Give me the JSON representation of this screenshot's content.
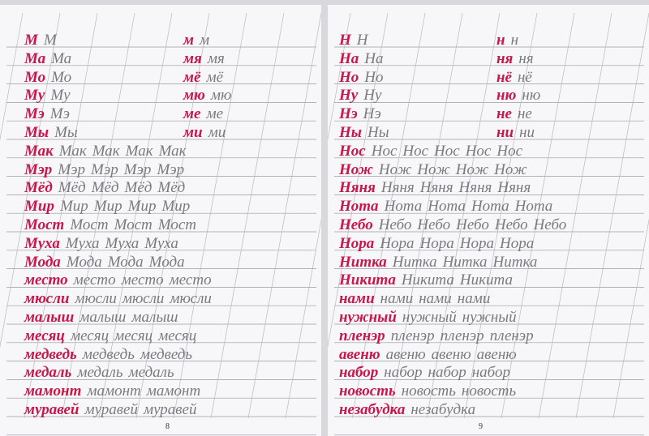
{
  "pages": [
    {
      "page_number": "8",
      "rows": [
        {
          "sample": "М",
          "copies": [
            "М"
          ],
          "sample_lower": "м",
          "copies_lower": [
            "м"
          ]
        },
        {
          "sample": "Ма",
          "copies": [
            "Ма"
          ],
          "sample_lower": "мя",
          "copies_lower": [
            "мя"
          ]
        },
        {
          "sample": "Мо",
          "copies": [
            "Мо"
          ],
          "sample_lower": "мё",
          "copies_lower": [
            "мё"
          ]
        },
        {
          "sample": "Му",
          "copies": [
            "Му"
          ],
          "sample_lower": "мю",
          "copies_lower": [
            "мю"
          ]
        },
        {
          "sample": "Мэ",
          "copies": [
            "Мэ"
          ],
          "sample_lower": "ме",
          "copies_lower": [
            "ме"
          ]
        },
        {
          "sample": "Мы",
          "copies": [
            "Мы"
          ],
          "sample_lower": "ми",
          "copies_lower": [
            "ми"
          ]
        },
        {
          "sample": "Мак",
          "copies": [
            "Мак",
            "Мак",
            "Мак",
            "Мак"
          ]
        },
        {
          "sample": "Мэр",
          "copies": [
            "Мэр",
            "Мэр",
            "Мэр",
            "Мэр"
          ]
        },
        {
          "sample": "Мёд",
          "copies": [
            "Мёд",
            "Мёд",
            "Мёд",
            "Мёд"
          ]
        },
        {
          "sample": "Мир",
          "copies": [
            "Мир",
            "Мир",
            "Мир",
            "Мир"
          ]
        },
        {
          "sample": "Мост",
          "copies": [
            "Мост",
            "Мост",
            "Мост"
          ]
        },
        {
          "sample": "Муха",
          "copies": [
            "Муха",
            "Муха",
            "Муха"
          ]
        },
        {
          "sample": "Мода",
          "copies": [
            "Мода",
            "Мода",
            "Мода"
          ]
        },
        {
          "sample": "место",
          "copies": [
            "место",
            "место",
            "место"
          ]
        },
        {
          "sample": "мюсли",
          "copies": [
            "мюсли",
            "мюсли",
            "мюсли"
          ]
        },
        {
          "sample": "малыш",
          "copies": [
            "малыш",
            "малыш"
          ]
        },
        {
          "sample": "месяц",
          "copies": [
            "месяц",
            "месяц",
            "месяц"
          ]
        },
        {
          "sample": "медведь",
          "copies": [
            "медведь",
            "медведь"
          ]
        },
        {
          "sample": "медаль",
          "copies": [
            "медаль",
            "медаль"
          ]
        },
        {
          "sample": "мамонт",
          "copies": [
            "мамонт",
            "мамонт"
          ]
        },
        {
          "sample": "муравей",
          "copies": [
            "муравей",
            "муравей"
          ]
        }
      ]
    },
    {
      "page_number": "9",
      "rows": [
        {
          "sample": "Н",
          "copies": [
            "Н"
          ],
          "sample_lower": "н",
          "copies_lower": [
            "н"
          ]
        },
        {
          "sample": "На",
          "copies": [
            "На"
          ],
          "sample_lower": "ня",
          "copies_lower": [
            "ня"
          ]
        },
        {
          "sample": "Но",
          "copies": [
            "Но"
          ],
          "sample_lower": "нё",
          "copies_lower": [
            "нё"
          ]
        },
        {
          "sample": "Ну",
          "copies": [
            "Ну"
          ],
          "sample_lower": "ню",
          "copies_lower": [
            "ню"
          ]
        },
        {
          "sample": "Нэ",
          "copies": [
            "Нэ"
          ],
          "sample_lower": "не",
          "copies_lower": [
            "не"
          ]
        },
        {
          "sample": "Ны",
          "copies": [
            "Ны"
          ],
          "sample_lower": "ни",
          "copies_lower": [
            "ни"
          ]
        },
        {
          "sample": "Нос",
          "copies": [
            "Нос",
            "Нос",
            "Нос",
            "Нос",
            "Нос"
          ]
        },
        {
          "sample": "Нож",
          "copies": [
            "Нож",
            "Нож",
            "Нож",
            "Нож"
          ]
        },
        {
          "sample": "Няня",
          "copies": [
            "Няня",
            "Няня",
            "Няня",
            "Няня"
          ]
        },
        {
          "sample": "Нота",
          "copies": [
            "Нота",
            "Нота",
            "Нота",
            "Нота"
          ]
        },
        {
          "sample": "Небо",
          "copies": [
            "Небо",
            "Небо",
            "Небо",
            "Небо",
            "Небо"
          ]
        },
        {
          "sample": "Нора",
          "copies": [
            "Нора",
            "Нора",
            "Нора",
            "Нора"
          ]
        },
        {
          "sample": "Нитка",
          "copies": [
            "Нитка",
            "Нитка",
            "Нитка"
          ]
        },
        {
          "sample": "Никита",
          "copies": [
            "Никита",
            "Никита"
          ]
        },
        {
          "sample": "нами",
          "copies": [
            "нами",
            "нами",
            "нами"
          ]
        },
        {
          "sample": "нужный",
          "copies": [
            "нужный",
            "нужный"
          ]
        },
        {
          "sample": "пленэр",
          "copies": [
            "пленэр",
            "пленэр",
            "пленэр"
          ]
        },
        {
          "sample": "авеню",
          "copies": [
            "авеню",
            "авеню",
            "авеню"
          ]
        },
        {
          "sample": "набор",
          "copies": [
            "набор",
            "набор",
            "набор"
          ]
        },
        {
          "sample": "новость",
          "copies": [
            "новость",
            "новость"
          ]
        },
        {
          "sample": "незабудка",
          "copies": [
            "незабудка"
          ]
        }
      ]
    }
  ]
}
